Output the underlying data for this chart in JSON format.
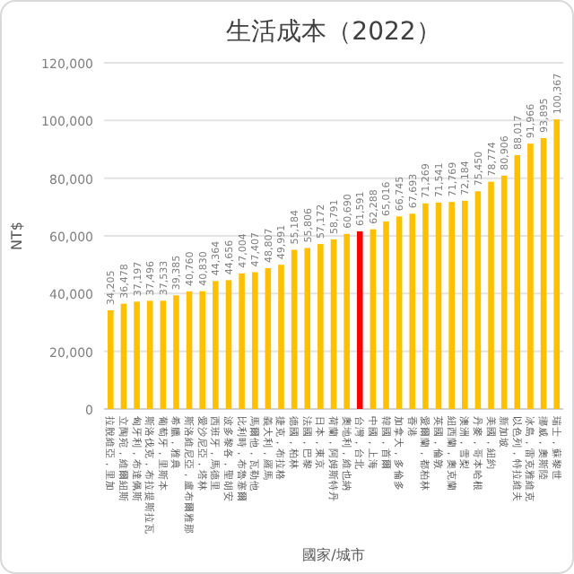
{
  "chart_data": {
    "type": "bar",
    "title": "生活成本（2022）",
    "xlabel": "國家/城市",
    "ylabel": "NT$",
    "categories": [
      "拉脫維亞，里加",
      "立陶宛，維爾紐斯",
      "匈牙利，布達佩斯",
      "斯洛伐克，布拉提斯拉瓦",
      "葡萄牙，里斯本",
      "希臘，雅典",
      "斯洛維尼亞，盧布爾雅那",
      "愛沙尼亞，塔林",
      "西班牙，馬德里",
      "波多黎各，聖胡安",
      "比利時，布魯塞爾",
      "馬爾他，瓦勒他",
      "義大利，羅馬",
      "捷克，布拉格",
      "德國，柏林",
      "法國，巴黎",
      "日本，東京",
      "荷蘭，阿姆斯特丹",
      "奧地利，維也納",
      "台灣，台北",
      "中國，上海",
      "韓國，首爾",
      "加拿大，多倫多",
      "香港",
      "愛爾蘭，都柏林",
      "英國，倫敦",
      "紐西蘭，奧克蘭",
      "澳洲，雪梨",
      "丹麥，哥本哈根",
      "美國，紐約",
      "新加坡",
      "以色列，特拉維夫",
      "冰島，雷克雅維克",
      "挪威，奧斯陸",
      "瑞士，蘇黎世"
    ],
    "values": [
      34205,
      36478,
      37197,
      37496,
      37533,
      39385,
      40760,
      40830,
      44364,
      44656,
      47004,
      47407,
      48807,
      49991,
      55184,
      55806,
      57172,
      58791,
      60690,
      61591,
      62288,
      65016,
      66745,
      67693,
      71269,
      71541,
      71769,
      72184,
      75450,
      78774,
      80906,
      88017,
      91966,
      93895,
      100367
    ],
    "colors": [
      "#ffc000",
      "#ffc000",
      "#ffc000",
      "#ffc000",
      "#ffc000",
      "#ffc000",
      "#ffc000",
      "#ffc000",
      "#ffc000",
      "#ffc000",
      "#ffc000",
      "#ffc000",
      "#ffc000",
      "#ffc000",
      "#ffc000",
      "#ffc000",
      "#ffc000",
      "#ffc000",
      "#ffc000",
      "#ff0000",
      "#ffc000",
      "#ffc000",
      "#ffc000",
      "#ffc000",
      "#ffc000",
      "#ffc000",
      "#ffc000",
      "#ffc000",
      "#ffc000",
      "#ffc000",
      "#ffc000",
      "#ffc000",
      "#ffc000",
      "#ffc000",
      "#ffc000"
    ],
    "ylim": [
      0,
      120000
    ],
    "yticks": [
      {
        "value": 0,
        "label": "0"
      },
      {
        "value": 20000,
        "label": "20,000"
      },
      {
        "value": 40000,
        "label": "40,000"
      },
      {
        "value": 60000,
        "label": "60,000"
      },
      {
        "value": 80000,
        "label": "80,000"
      },
      {
        "value": 100000,
        "label": "100,000"
      },
      {
        "value": 120000,
        "label": "120,000"
      }
    ],
    "grid": "y",
    "value_labels": [
      "34,205",
      "36,478",
      "37,197",
      "37,496",
      "37,533",
      "39,385",
      "40,760",
      "40,830",
      "44,364",
      "44,656",
      "47,004",
      "47,407",
      "48,807",
      "49,991",
      "55,184",
      "55,806",
      "57,172",
      "58,791",
      "60,690",
      "61,591",
      "62,288",
      "65,016",
      "66,745",
      "67,693",
      "71,269",
      "71,541",
      "71,769",
      "72,184",
      "75,450",
      "78,774",
      "80,906",
      "88,017",
      "91,966",
      "93,895",
      "100,367"
    ]
  }
}
